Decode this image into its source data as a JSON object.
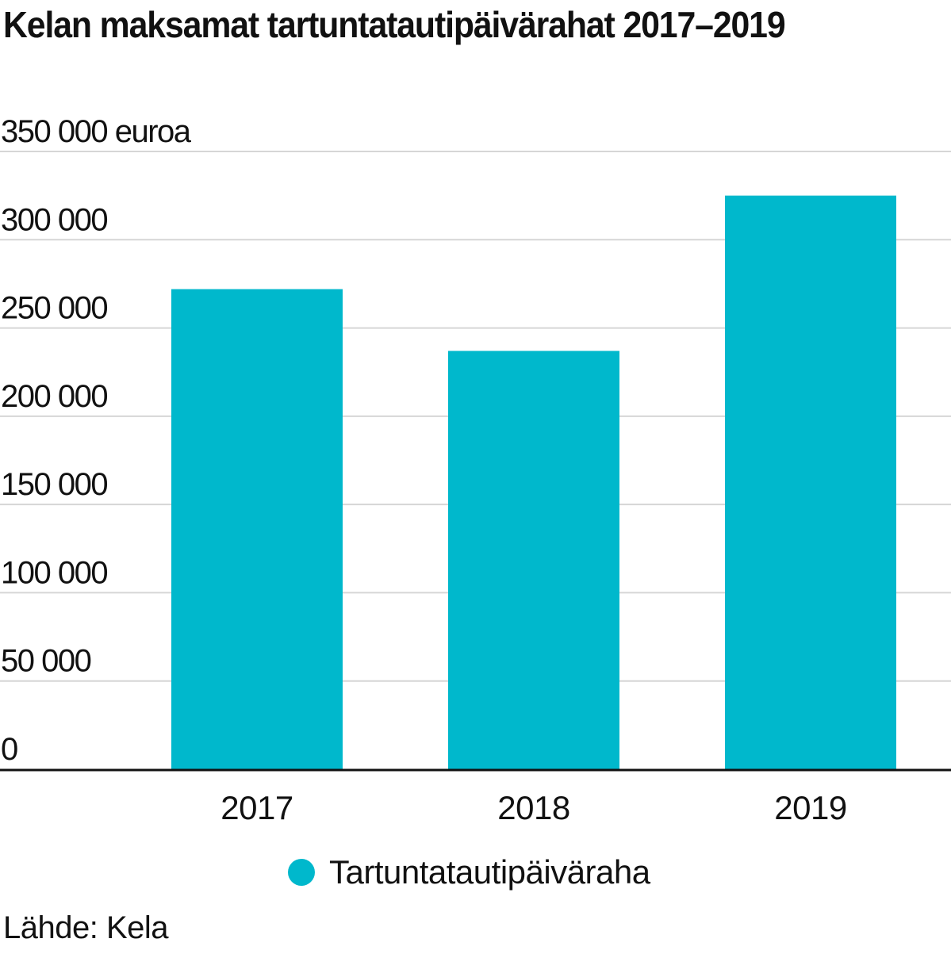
{
  "chart_data": {
    "type": "bar",
    "title": "Kelan maksamat tartuntatautipäivärahat 2017–2019",
    "xlabel": "",
    "ylabel": "euroa",
    "categories": [
      "2017",
      "2018",
      "2019"
    ],
    "series": [
      {
        "name": "Tartuntatautipäiväraha",
        "values": [
          272000,
          237000,
          325000
        ]
      }
    ],
    "ylim": [
      0,
      350000
    ],
    "y_ticks": [
      {
        "value": 0,
        "label": "0"
      },
      {
        "value": 50000,
        "label": "50 000"
      },
      {
        "value": 100000,
        "label": "100 000"
      },
      {
        "value": 150000,
        "label": "150 000"
      },
      {
        "value": 200000,
        "label": "200 000"
      },
      {
        "value": 250000,
        "label": "250 000"
      },
      {
        "value": 300000,
        "label": "300 000"
      },
      {
        "value": 350000,
        "label": "350 000 euroa"
      }
    ],
    "grid": true,
    "legend_position": "bottom",
    "source": "Lähde: Kela"
  },
  "colors": {
    "bar": "#00b8cc",
    "grid": "#d6d6d6",
    "axis": "#111111",
    "text": "#111111"
  }
}
